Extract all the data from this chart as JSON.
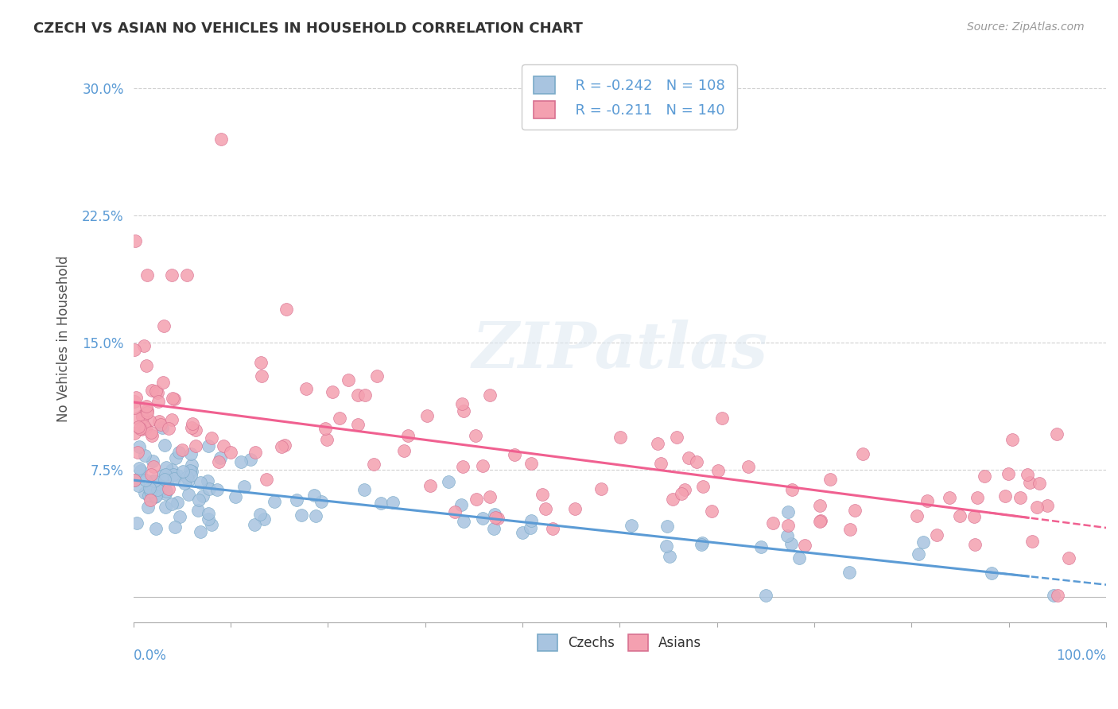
{
  "title": "CZECH VS ASIAN NO VEHICLES IN HOUSEHOLD CORRELATION CHART",
  "source": "Source: ZipAtlas.com",
  "ylabel": "No Vehicles in Household",
  "yticks": [
    0.0,
    0.075,
    0.15,
    0.225,
    0.3
  ],
  "ytick_labels": [
    "",
    "7.5%",
    "15.0%",
    "22.5%",
    "30.0%"
  ],
  "xlim": [
    0.0,
    1.0
  ],
  "ylim": [
    -0.015,
    0.32
  ],
  "czechs_color": "#a8c4e0",
  "asians_color": "#f4a0b0",
  "czechs_line_color": "#5b9bd5",
  "asians_line_color": "#f06090",
  "legend_r_czech": "R = -0.242",
  "legend_n_czech": "N = 108",
  "legend_r_asian": "R = -0.211",
  "legend_n_asian": "N = 140",
  "watermark": "ZIPatlas",
  "background_color": "#ffffff",
  "grid_color": "#d0d0d0"
}
